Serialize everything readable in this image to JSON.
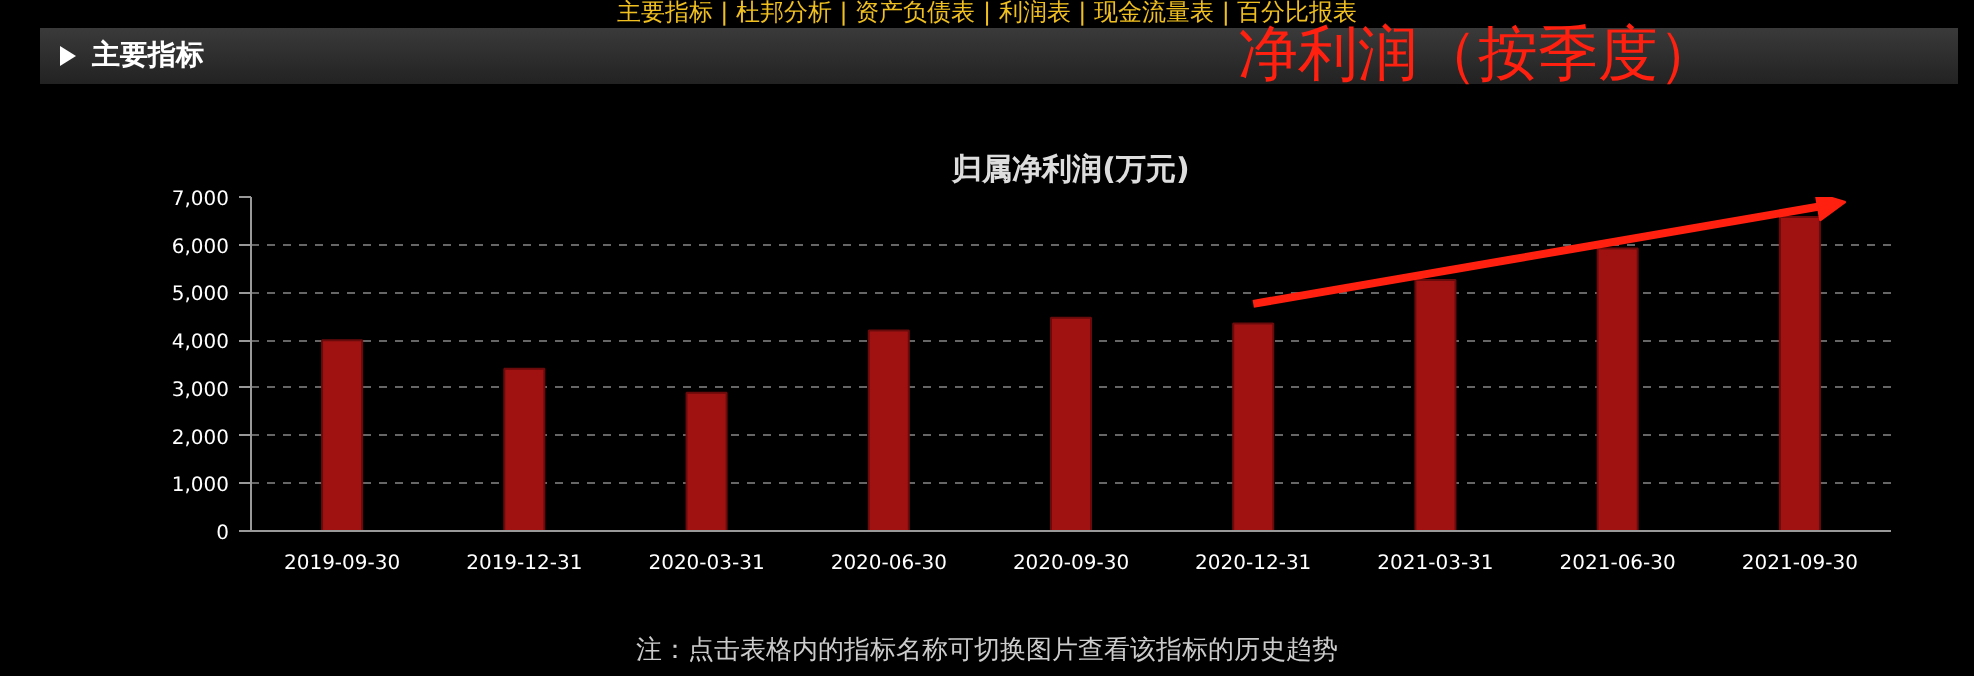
{
  "chart_data": {
    "type": "bar",
    "title": "归属净利润(万元)",
    "categories": [
      "2019-09-30",
      "2019-12-31",
      "2020-03-31",
      "2020-06-30",
      "2020-09-30",
      "2020-12-31",
      "2021-03-31",
      "2021-06-30",
      "2021-09-30"
    ],
    "values": [
      4000,
      3400,
      2900,
      4200,
      4470,
      4350,
      5260,
      5920,
      6580
    ],
    "color": "#a01212",
    "ylim": [
      0,
      7000
    ],
    "yticks": [
      {
        "value": 0,
        "label": "0"
      },
      {
        "value": 1000,
        "label": "1,000"
      },
      {
        "value": 2000,
        "label": "2,000"
      },
      {
        "value": 3000,
        "label": "3,000"
      },
      {
        "value": 4000,
        "label": "4,000"
      },
      {
        "value": 5000,
        "label": "5,000"
      },
      {
        "value": 6000,
        "label": "6,000"
      },
      {
        "value": 7000,
        "label": "7,000"
      }
    ],
    "grid": "y",
    "annotations": [
      "主要指标 | 杜邦分析 | 资产负债表 | 利润表 | 现金流量表 | 百分比报表",
      "主要指标",
      "净利润（按季度）",
      "注：点击表格内的指标名称可切换图片查看该指标的历史趋势"
    ]
  }
}
